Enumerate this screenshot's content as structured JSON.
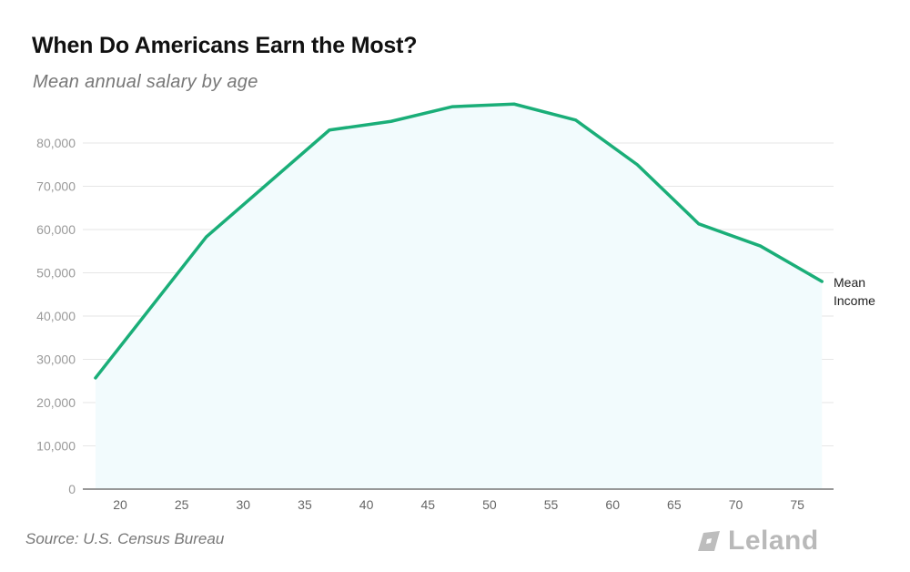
{
  "header": {
    "title": "When Do Americans Earn the Most?",
    "subtitle": "Mean annual salary by age"
  },
  "footer": {
    "source": "Source: U.S. Census Bureau",
    "brand": "Leland"
  },
  "colors": {
    "line": "#1AAE78",
    "fill": "#F2FBFD",
    "grid": "#E6E6E6",
    "axis": "#777777"
  },
  "chart_data": {
    "type": "area",
    "title": "When Do Americans Earn the Most?",
    "subtitle": "Mean annual salary by age",
    "xlabel": "",
    "ylabel": "",
    "x": [
      18,
      27,
      37,
      42,
      47,
      52,
      57,
      62,
      67,
      72,
      77
    ],
    "series": [
      {
        "name": "Mean Income",
        "values": [
          25700,
          58300,
          83000,
          85000,
          88400,
          89000,
          85300,
          75000,
          61300,
          56200,
          48000
        ]
      }
    ],
    "x_ticks": [
      "20",
      "25",
      "30",
      "35",
      "40",
      "45",
      "50",
      "55",
      "60",
      "65",
      "70",
      "75"
    ],
    "y_ticks": [
      "0",
      "10,000",
      "20,000",
      "30,000",
      "40,000",
      "50,000",
      "60,000",
      "70,000",
      "80,000"
    ],
    "ylim": [
      0,
      80000
    ],
    "xlim": [
      18,
      77
    ],
    "grid": true,
    "legend_position": "end-of-line label",
    "annotations": [
      "Mean Income"
    ],
    "source": "Source: U.S. Census Bureau"
  }
}
